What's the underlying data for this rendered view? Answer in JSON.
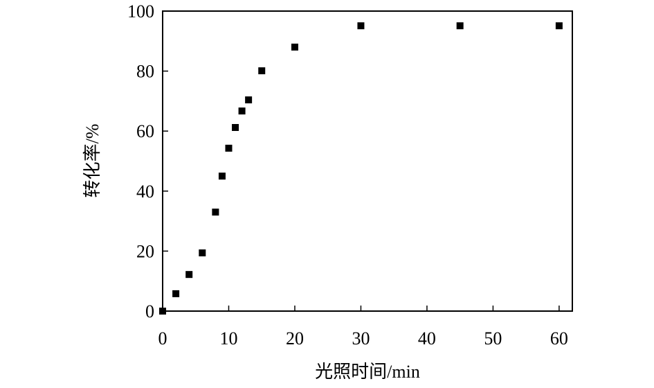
{
  "chart_data": {
    "type": "scatter",
    "xlabel": "光照时间/min",
    "ylabel": "转化率/%",
    "x": [
      0,
      2,
      4,
      6,
      8,
      9,
      10,
      11,
      12,
      13,
      15,
      20,
      30,
      45,
      60
    ],
    "series": [
      {
        "color": "#000000",
        "values": [
          0,
          5.8,
          12.2,
          19.4,
          33.0,
          45.0,
          54.3,
          61.2,
          66.7,
          70.4,
          80.1,
          88.0,
          95.1,
          95.1,
          95.1
        ]
      }
    ],
    "xlim": [
      0,
      62
    ],
    "ylim": [
      0,
      100
    ],
    "xticks": [
      0,
      10,
      20,
      30,
      40,
      50,
      60
    ],
    "yticks": [
      0,
      20,
      40,
      60,
      80,
      100
    ]
  }
}
